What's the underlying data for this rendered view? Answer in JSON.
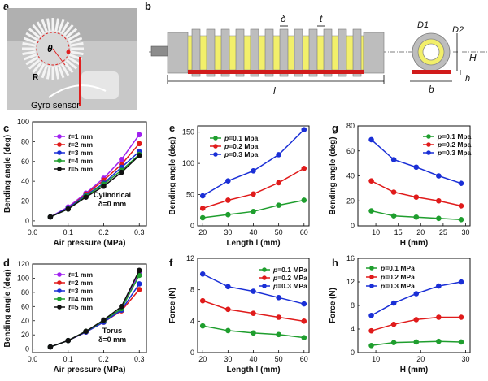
{
  "panels": {
    "a": {
      "letter": "a",
      "label_theta": "θ",
      "label_R": "R",
      "label_gyro": "Gyro sensor"
    },
    "b": {
      "letter": "b",
      "delta": "δ",
      "t": "t",
      "l": "l",
      "D1": "D1",
      "D2": "D2",
      "H": "H",
      "h": "h",
      "b": "b"
    }
  },
  "colors": {
    "green": "#1f9e2e",
    "red": "#e01b1b",
    "blue": "#1a2fd6",
    "purple": "#a020f0",
    "black": "#111111",
    "yellow": "#f2ef6a",
    "grey": "#bdbdbd",
    "darkgrey": "#8c8c8c",
    "strip": "#d11b1b"
  },
  "chart_data": [
    {
      "id": "c",
      "type": "line",
      "ylabel": "Bending angle (deg)",
      "xlabel": "Air pressure (MPa)",
      "xlim": [
        0,
        0.32
      ],
      "ylim": [
        -5,
        100
      ],
      "xticks": [
        0.0,
        0.1,
        0.2,
        0.3
      ],
      "xtick_labels": [
        "0.0",
        "0.1",
        "0.2",
        "0.3"
      ],
      "yticks": [
        0,
        20,
        40,
        60,
        80,
        100
      ],
      "ytick_labels": [
        "0",
        "20",
        "40",
        "60",
        "80",
        "100"
      ],
      "legend_prefix": "t",
      "annotation": [
        "Cylindrical",
        "δ=0 mm"
      ],
      "x": [
        0.05,
        0.1,
        0.15,
        0.2,
        0.25,
        0.3
      ],
      "series": [
        {
          "name": "=1 mm",
          "color": "purple",
          "marker": "circle",
          "values": [
            4,
            14,
            28,
            43,
            62,
            87
          ]
        },
        {
          "name": "=2 mm",
          "color": "red",
          "marker": "circle",
          "values": [
            4,
            13,
            27,
            41,
            57,
            78
          ]
        },
        {
          "name": "=3 mm",
          "color": "blue",
          "marker": "circle",
          "values": [
            4,
            13,
            26,
            38,
            54,
            70
          ]
        },
        {
          "name": "=4 mm",
          "color": "green",
          "marker": "circle",
          "values": [
            4,
            12,
            25,
            37,
            51,
            67
          ]
        },
        {
          "name": "=5 mm",
          "color": "black",
          "marker": "circle",
          "values": [
            4,
            12,
            24,
            35,
            49,
            66
          ]
        }
      ]
    },
    {
      "id": "d",
      "type": "line",
      "ylabel": "Bending angle (deg)",
      "xlabel": "Air pressure (MPa)",
      "xlim": [
        0,
        0.32
      ],
      "ylim": [
        -5,
        120
      ],
      "xticks": [
        0.0,
        0.1,
        0.2,
        0.3
      ],
      "xtick_labels": [
        "0.0",
        "0.1",
        "0.2",
        "0.3"
      ],
      "yticks": [
        0,
        20,
        40,
        60,
        80,
        100,
        120
      ],
      "ytick_labels": [
        "0",
        "20",
        "40",
        "60",
        "80",
        "100",
        "120"
      ],
      "legend_prefix": "t",
      "annotation": [
        "Torus",
        "δ=0 mm"
      ],
      "x": [
        0.05,
        0.1,
        0.15,
        0.2,
        0.25,
        0.3
      ],
      "series": [
        {
          "name": "=1 mm",
          "color": "purple",
          "marker": "circle",
          "values": [
            3,
            12,
            24,
            40,
            57,
            108
          ]
        },
        {
          "name": "=2 mm",
          "color": "red",
          "marker": "circle",
          "values": [
            3,
            12,
            24,
            38,
            54,
            84
          ]
        },
        {
          "name": "=3 mm",
          "color": "blue",
          "marker": "circle",
          "values": [
            3,
            12,
            24,
            38,
            55,
            92
          ]
        },
        {
          "name": "=4 mm",
          "color": "green",
          "marker": "circle",
          "values": [
            3,
            12,
            25,
            40,
            57,
            104
          ]
        },
        {
          "name": "=5 mm",
          "color": "black",
          "marker": "circle",
          "values": [
            3,
            12,
            25,
            41,
            60,
            111
          ]
        }
      ]
    },
    {
      "id": "e",
      "type": "line",
      "ylabel": "Bending angle (deg)",
      "xlabel": "Length l (mm)",
      "xlim": [
        18,
        62
      ],
      "ylim": [
        0,
        160
      ],
      "xticks": [
        20,
        30,
        40,
        50,
        60
      ],
      "xtick_labels": [
        "20",
        "30",
        "40",
        "50",
        "60"
      ],
      "yticks": [
        0,
        50,
        100,
        150
      ],
      "ytick_labels": [
        "0",
        "50",
        "100",
        "150"
      ],
      "legend_prefix": "p",
      "x": [
        20,
        30,
        40,
        50,
        60
      ],
      "series": [
        {
          "name": "=0.1 Mpa",
          "color": "green",
          "marker": "circle",
          "values": [
            13,
            18,
            23,
            33,
            41
          ]
        },
        {
          "name": "=0.2 Mpa",
          "color": "red",
          "marker": "circle",
          "values": [
            28,
            41,
            51,
            69,
            92
          ]
        },
        {
          "name": "=0.3 Mpa",
          "color": "blue",
          "marker": "circle",
          "values": [
            48,
            72,
            88,
            114,
            154
          ]
        }
      ]
    },
    {
      "id": "f",
      "type": "line",
      "ylabel": "Force (N)",
      "xlabel": "Length l (mm)",
      "xlim": [
        18,
        62
      ],
      "ylim": [
        0,
        12
      ],
      "xticks": [
        20,
        30,
        40,
        50,
        60
      ],
      "xtick_labels": [
        "20",
        "30",
        "40",
        "50",
        "60"
      ],
      "yticks": [
        0,
        4,
        8,
        12
      ],
      "ytick_labels": [
        "0",
        "4",
        "8",
        "12"
      ],
      "legend_prefix": "p",
      "x": [
        20,
        30,
        40,
        50,
        60
      ],
      "series": [
        {
          "name": "=0.1 MPa",
          "color": "green",
          "marker": "circle",
          "values": [
            3.4,
            2.8,
            2.5,
            2.3,
            1.9
          ]
        },
        {
          "name": "=0.2 MPa",
          "color": "red",
          "marker": "circle",
          "values": [
            6.6,
            5.5,
            5.0,
            4.5,
            4.0
          ]
        },
        {
          "name": "=0.3 MPa",
          "color": "blue",
          "marker": "circle",
          "values": [
            10.0,
            8.4,
            7.8,
            7.0,
            6.2
          ]
        }
      ]
    },
    {
      "id": "g",
      "type": "line",
      "ylabel": "Bending angle (deg)",
      "xlabel": "H (mm)",
      "xlim": [
        6,
        31
      ],
      "ylim": [
        0,
        80
      ],
      "xticks": [
        10,
        15,
        20,
        25,
        30
      ],
      "xtick_labels": [
        "10",
        "15",
        "20",
        "25",
        "30"
      ],
      "yticks": [
        0,
        20,
        40,
        60,
        80
      ],
      "ytick_labels": [
        "0",
        "20",
        "40",
        "60",
        "80"
      ],
      "legend_prefix": "p",
      "x": [
        9,
        14,
        19,
        24,
        29
      ],
      "series": [
        {
          "name": "=0.1 Mpa",
          "color": "green",
          "marker": "circle",
          "values": [
            12,
            8,
            7,
            6,
            5
          ]
        },
        {
          "name": "=0.2 Mpa",
          "color": "red",
          "marker": "circle",
          "values": [
            36,
            27,
            23,
            20,
            16
          ]
        },
        {
          "name": "=0.3 Mpa",
          "color": "blue",
          "marker": "circle",
          "values": [
            69,
            53,
            47,
            40,
            34
          ]
        }
      ]
    },
    {
      "id": "h",
      "type": "line",
      "ylabel": "Force (N)",
      "xlabel": "H (mm)",
      "xlim": [
        6,
        31
      ],
      "ylim": [
        0,
        16
      ],
      "xticks": [
        10,
        20,
        30
      ],
      "xtick_labels": [
        "10",
        "20",
        "30"
      ],
      "yticks": [
        0,
        4,
        8,
        12,
        16
      ],
      "ytick_labels": [
        "0",
        "4",
        "8",
        "12",
        "16"
      ],
      "legend_prefix": "p",
      "x": [
        9,
        14,
        19,
        24,
        29
      ],
      "series": [
        {
          "name": "=0.1 MPa",
          "color": "green",
          "marker": "circle",
          "values": [
            1.2,
            1.7,
            1.8,
            1.9,
            1.8
          ]
        },
        {
          "name": "=0.2 MPa",
          "color": "red",
          "marker": "circle",
          "values": [
            3.7,
            4.8,
            5.6,
            6.0,
            6.0
          ]
        },
        {
          "name": "=0.3 MPa",
          "color": "blue",
          "marker": "circle",
          "values": [
            6.3,
            8.4,
            10.0,
            11.3,
            12.0
          ]
        }
      ]
    }
  ]
}
